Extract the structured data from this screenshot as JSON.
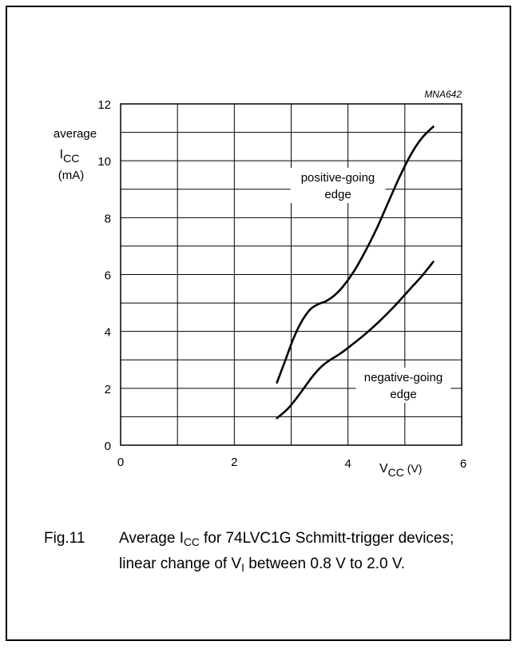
{
  "chart_data": {
    "type": "line",
    "code": "MNA642",
    "ylabel": {
      "line1": "average",
      "main": "I",
      "sub": "CC",
      "unit": "(mA)"
    },
    "xlabel": {
      "main": "V",
      "sub": "CC",
      "unit": "(V)"
    },
    "xlim": [
      0,
      6
    ],
    "ylim": [
      0,
      12
    ],
    "x_ticks": [
      "0",
      "2",
      "4",
      "6"
    ],
    "y_ticks": [
      "0",
      "2",
      "4",
      "6",
      "8",
      "10",
      "12"
    ],
    "grid": true,
    "series": [
      {
        "name": "positive-going edge",
        "label_lines": [
          "positive-going",
          "edge"
        ],
        "x": [
          2.75,
          2.9,
          3.05,
          3.2,
          3.35,
          3.5,
          3.6,
          3.75,
          3.9,
          4.1,
          4.3,
          4.5,
          4.7,
          4.9,
          5.1,
          5.3,
          5.5
        ],
        "y": [
          2.2,
          3.0,
          3.8,
          4.4,
          4.8,
          4.98,
          5.05,
          5.25,
          5.55,
          6.1,
          6.8,
          7.6,
          8.5,
          9.4,
          10.2,
          10.8,
          11.2
        ]
      },
      {
        "name": "negative-going edge",
        "label_lines": [
          "negative-going",
          "edge"
        ],
        "x": [
          2.75,
          2.95,
          3.15,
          3.35,
          3.5,
          3.65,
          3.85,
          4.05,
          4.3,
          4.55,
          4.8,
          5.05,
          5.3,
          5.5
        ],
        "y": [
          0.95,
          1.3,
          1.8,
          2.35,
          2.7,
          2.95,
          3.2,
          3.5,
          3.9,
          4.35,
          4.85,
          5.4,
          5.95,
          6.45
        ]
      }
    ]
  },
  "caption": {
    "fig_label": "Fig.11",
    "text_before": "Average I",
    "text_sub": "CC",
    "text_after": " for 74LVC1G Schmitt-trigger devices; linear change of V",
    "text_sub2": "I",
    "text_end": " between 0.8 V to 2.0 V."
  }
}
